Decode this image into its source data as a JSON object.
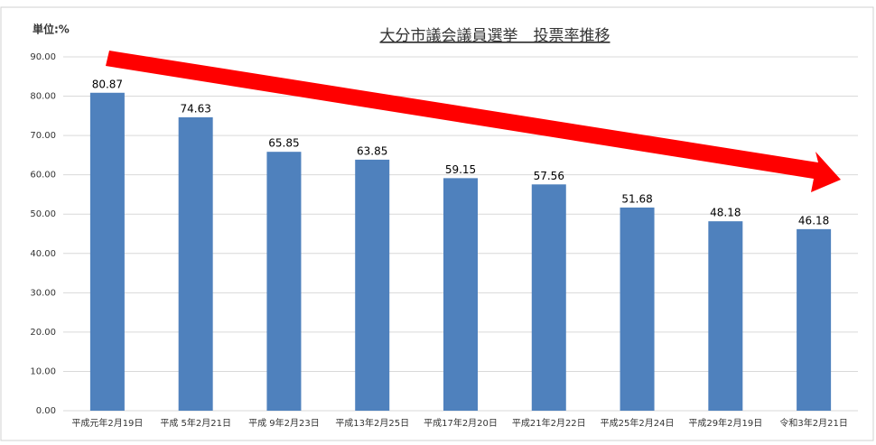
{
  "chart_data": {
    "type": "bar",
    "title": "大分市議会議員選挙　投票率推移",
    "unit_label": "単位:%",
    "categories": [
      "平成元年2月19日",
      "平成 5年2月21日",
      "平成 9年2月23日",
      "平成13年2月25日",
      "平成17年2月20日",
      "平成21年2月22日",
      "平成25年2月24日",
      "平成29年2月19日",
      "令和3年2月21日"
    ],
    "values": [
      80.87,
      74.63,
      65.85,
      63.85,
      59.15,
      57.56,
      51.68,
      48.18,
      46.18
    ],
    "color": "#4f81bd",
    "ylim": [
      0,
      90
    ],
    "yticks": [
      {
        "value": 0,
        "label": "0.00"
      },
      {
        "value": 10,
        "label": "10.00"
      },
      {
        "value": 20,
        "label": "20.00"
      },
      {
        "value": 30,
        "label": "30.00"
      },
      {
        "value": 40,
        "label": "40.00"
      },
      {
        "value": 50,
        "label": "50.00"
      },
      {
        "value": 60,
        "label": "60.00"
      },
      {
        "value": 70,
        "label": "70.00"
      },
      {
        "value": 80,
        "label": "80.00"
      },
      {
        "value": 90,
        "label": "90.00"
      }
    ],
    "grid": true
  }
}
